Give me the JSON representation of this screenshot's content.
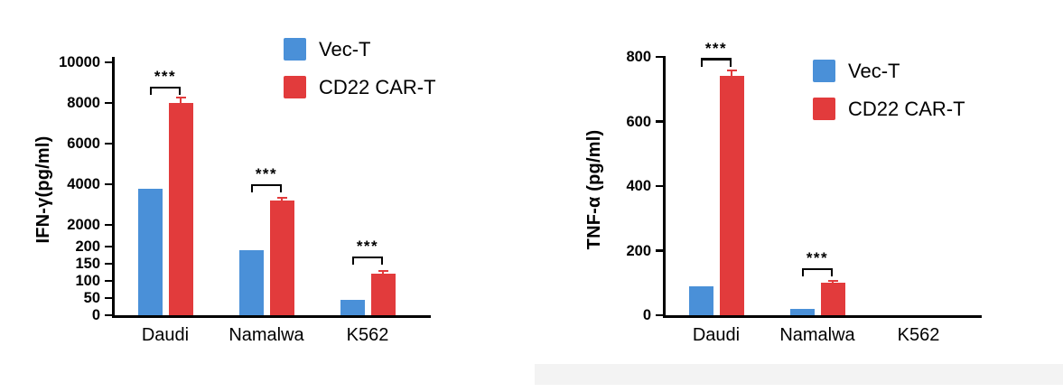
{
  "figure": {
    "background": "#ffffff",
    "axis_color": "#000000",
    "text_color": "#000000"
  },
  "legend": {
    "items": [
      {
        "label": "Vec-T",
        "color": "#4a90d8"
      },
      {
        "label": "CD22 CAR-T",
        "color": "#e23b3c"
      }
    ],
    "position": "top-right"
  },
  "chart_data": [
    {
      "type": "bar",
      "title": "",
      "ylabel": "IFN-γ(pg/ml)",
      "xlabel": "",
      "categories": [
        "Daudi",
        "Namalwa",
        "K562"
      ],
      "series": [
        {
          "name": "Vec-T",
          "color": "#4a90d8",
          "values": [
            3800,
            190,
            45
          ],
          "errors": [
            0,
            0,
            0
          ]
        },
        {
          "name": "CD22 CAR-T",
          "color": "#e23b3c",
          "values": [
            8000,
            3200,
            120
          ],
          "errors": [
            300,
            180,
            12
          ]
        }
      ],
      "axis_break": true,
      "y_segments": [
        {
          "range": [
            0,
            200
          ],
          "ticks": [
            0,
            50,
            100,
            150,
            200
          ]
        },
        {
          "range": [
            2000,
            10000
          ],
          "ticks": [
            2000,
            4000,
            6000,
            8000,
            10000
          ]
        }
      ],
      "significance": [
        {
          "category": "Daudi",
          "label": "***",
          "y": 8700
        },
        {
          "category": "Namalwa",
          "label": "***",
          "y": 3900
        },
        {
          "category": "K562",
          "label": "***",
          "y": 165
        }
      ],
      "grid": false,
      "legend_position": "top-right"
    },
    {
      "type": "bar",
      "title": "",
      "ylabel": "TNF-α (pg/ml)",
      "xlabel": "",
      "categories": [
        "Daudi",
        "Namalwa",
        "K562"
      ],
      "series": [
        {
          "name": "Vec-T",
          "color": "#4a90d8",
          "values": [
            90,
            20,
            0
          ],
          "errors": [
            0,
            0,
            0
          ]
        },
        {
          "name": "CD22 CAR-T",
          "color": "#e23b3c",
          "values": [
            740,
            100,
            0
          ],
          "errors": [
            20,
            8,
            0
          ]
        }
      ],
      "ylim": [
        0,
        800
      ],
      "yticks": [
        0,
        200,
        400,
        600,
        800
      ],
      "significance": [
        {
          "category": "Daudi",
          "label": "***",
          "y": 790
        },
        {
          "category": "Namalwa",
          "label": "***",
          "y": 140
        }
      ],
      "grid": false,
      "legend_position": "top-right"
    }
  ]
}
